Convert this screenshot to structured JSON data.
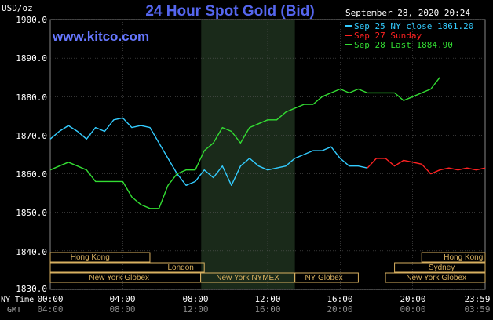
{
  "header": {
    "title": "24 Hour Spot Gold (Bid)",
    "unit": "USD/oz",
    "date": "September 28, 2020 20:24",
    "watermark": "www.kitco.com"
  },
  "legend": [
    {
      "label": "Sep 25 NY close 1861.20",
      "color": "#33ccff"
    },
    {
      "label": "Sep 27 Sunday",
      "color": "#ff2222"
    },
    {
      "label": "Sep 28 Last 1884.90",
      "color": "#33dd33"
    }
  ],
  "markets": {
    "row1": [
      "Hong Kong",
      "Hong Kong"
    ],
    "row2": [
      "London",
      "Sydney"
    ],
    "row3": [
      "New York Globex",
      "New York NYMEX",
      "NY Globex",
      "New York Globex"
    ]
  },
  "axis": {
    "ny_time_label": "NY Time",
    "gmt_label": "GMT",
    "ny_ticks": [
      "00:00",
      "04:00",
      "08:00",
      "12:00",
      "16:00",
      "20:00",
      "23:59"
    ],
    "gmt_ticks": [
      "04:00",
      "08:00",
      "12:00",
      "16:00",
      "20:00",
      "00:00",
      "03:59"
    ],
    "y_ticks": [
      "1900.0",
      "1890.0",
      "1880.0",
      "1870.0",
      "1860.0",
      "1850.0",
      "1840.0",
      "1830.0"
    ]
  },
  "colors": {
    "background": "#000000",
    "plot_background": "#000000",
    "nymex_shade": "#1a2a1a",
    "grid": "#555555",
    "title": "#5566ee",
    "watermark": "#6677ff",
    "text": "#ffffff",
    "market_label": "#d8b060",
    "market_border": "#d8b060"
  },
  "chart_data": {
    "type": "line",
    "title": "24 Hour Spot Gold (Bid)",
    "ylabel": "USD/oz",
    "xlabel": "NY Time",
    "ylim": [
      1830,
      1900
    ],
    "xlim": [
      0,
      24
    ],
    "grid": true,
    "legend_position": "top-right",
    "series": [
      {
        "name": "Sep 25 NY close 1861.20",
        "color": "#33ccff",
        "x": [
          0,
          0.5,
          1,
          1.5,
          2,
          2.5,
          3,
          3.5,
          4,
          4.5,
          5,
          5.5,
          6,
          6.5,
          7,
          7.5,
          8,
          8.5,
          9,
          9.5,
          10,
          10.5,
          11,
          11.5,
          12,
          12.5,
          13,
          13.5,
          14,
          14.5,
          15,
          15.5,
          16,
          16.5,
          17,
          17.5
        ],
        "y": [
          1869,
          1871,
          1872.5,
          1871,
          1869,
          1872,
          1871,
          1874,
          1874.5,
          1872,
          1872.5,
          1872,
          1868,
          1864,
          1860,
          1857,
          1858,
          1861,
          1859,
          1862,
          1857,
          1862,
          1864,
          1862,
          1861,
          1861.5,
          1862,
          1864,
          1865,
          1866,
          1866,
          1867,
          1864,
          1862,
          1862,
          1861.5
        ]
      },
      {
        "name": "Sep 27 Sunday",
        "color": "#ff2222",
        "x": [
          17.5,
          18,
          18.5,
          19,
          19.5,
          20,
          20.5,
          21,
          21.5,
          22,
          22.5,
          23,
          23.5,
          24
        ],
        "y": [
          1861.5,
          1864,
          1864,
          1862,
          1863.5,
          1863,
          1862.5,
          1860,
          1861,
          1861.5,
          1861,
          1861.5,
          1861,
          1861.5
        ]
      },
      {
        "name": "Sep 28 Last 1884.90",
        "color": "#33dd33",
        "x": [
          0,
          0.5,
          1,
          1.5,
          2,
          2.5,
          3,
          3.5,
          4,
          4.5,
          5,
          5.5,
          6,
          6.5,
          7,
          7.5,
          8,
          8.5,
          9,
          9.5,
          10,
          10.5,
          11,
          11.5,
          12,
          12.5,
          13,
          13.5,
          14,
          14.5,
          15,
          15.5,
          16,
          16.5,
          17,
          17.5,
          18,
          18.5,
          19,
          19.5,
          20,
          20.5,
          21,
          21.5
        ],
        "y": [
          1861,
          1862,
          1863,
          1862,
          1861,
          1858,
          1858,
          1858,
          1858,
          1854,
          1852,
          1851,
          1851,
          1857,
          1860,
          1861,
          1861,
          1866,
          1868,
          1872,
          1871,
          1868,
          1872,
          1873,
          1874,
          1874,
          1876,
          1877,
          1878,
          1878,
          1880,
          1881,
          1882,
          1881,
          1882,
          1881,
          1881,
          1881,
          1881,
          1879,
          1880,
          1881,
          1882,
          1885
        ]
      }
    ]
  }
}
